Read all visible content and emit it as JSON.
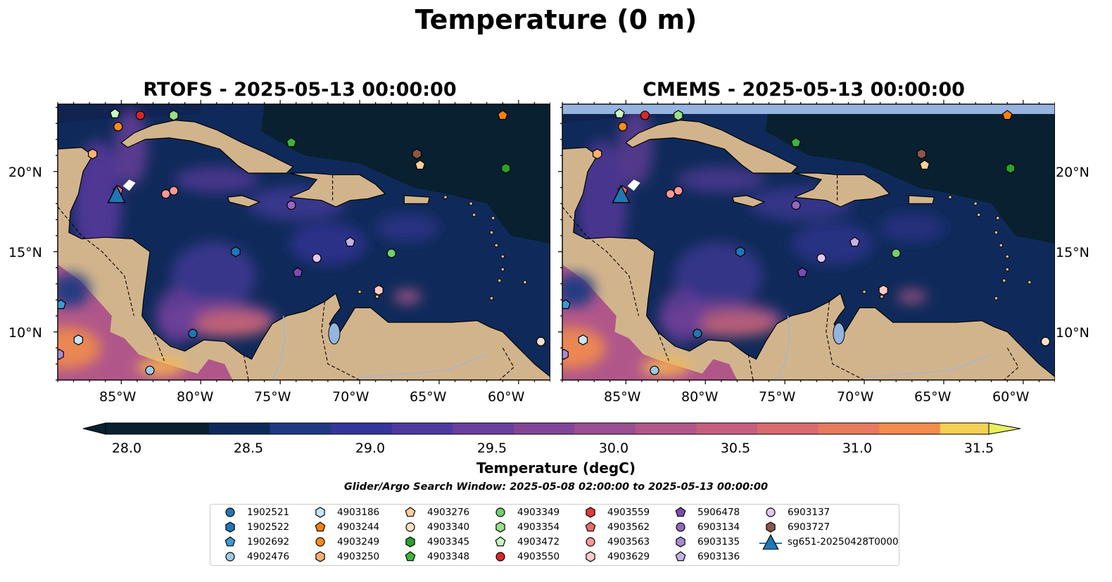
{
  "title": "Temperature (0 m)",
  "panels": [
    {
      "title": "RTOFS - 2025-05-13 00:00:00"
    },
    {
      "title": "CMEMS - 2025-05-13 00:00:00"
    }
  ],
  "lon_ticks": [
    "85°W",
    "80°W",
    "75°W",
    "70°W",
    "65°W",
    "60°W"
  ],
  "lat_ticks": [
    "20°N",
    "15°N",
    "10°N"
  ],
  "colorbar": {
    "label": "Temperature (degC)",
    "ticks": [
      "28.0",
      "28.5",
      "29.0",
      "29.5",
      "30.0",
      "30.5",
      "31.0",
      "31.5"
    ],
    "range": [
      28.0,
      31.5
    ],
    "colormap": "thermal",
    "colors": [
      "#08202f",
      "#0f2a5a",
      "#1f3a82",
      "#36359b",
      "#4f3aa0",
      "#6a3f9e",
      "#824698",
      "#9a4f92",
      "#b0578a",
      "#c65f7f",
      "#d96b6f",
      "#e77a5e",
      "#f28c4d",
      "#f9a03f",
      "#f9b84c",
      "#f2d154",
      "#e8f060"
    ]
  },
  "search_window": "Glider/Argo Search Window: 2025-05-08 02:00:00 to 2025-05-13 00:00:00",
  "legend": [
    {
      "label": "1902521",
      "marker": "circle",
      "color": "#1f77b4"
    },
    {
      "label": "1902522",
      "marker": "hexagon",
      "color": "#1f77b4"
    },
    {
      "label": "1902692",
      "marker": "pentagon",
      "color": "#3a9bd5"
    },
    {
      "label": "4902476",
      "marker": "circle",
      "color": "#9ecae9"
    },
    {
      "label": "4903186",
      "marker": "hexagon",
      "color": "#c6e6f7"
    },
    {
      "label": "4903244",
      "marker": "pentagon",
      "color": "#ff7f0e"
    },
    {
      "label": "4903249",
      "marker": "circle",
      "color": "#ff8c1a"
    },
    {
      "label": "4903250",
      "marker": "hexagon",
      "color": "#ffb070"
    },
    {
      "label": "4903276",
      "marker": "pentagon",
      "color": "#ffcf99"
    },
    {
      "label": "4903340",
      "marker": "circle",
      "color": "#fde0c5"
    },
    {
      "label": "4903345",
      "marker": "hexagon",
      "color": "#2ca02c"
    },
    {
      "label": "4903348",
      "marker": "pentagon",
      "color": "#3cb53c"
    },
    {
      "label": "4903349",
      "marker": "circle",
      "color": "#72d06a"
    },
    {
      "label": "4903354",
      "marker": "hexagon",
      "color": "#98df8a"
    },
    {
      "label": "4903472",
      "marker": "pentagon",
      "color": "#c9f5c0"
    },
    {
      "label": "4903550",
      "marker": "circle",
      "color": "#d62728"
    },
    {
      "label": "4903559",
      "marker": "hexagon",
      "color": "#e03a3a"
    },
    {
      "label": "4903562",
      "marker": "pentagon",
      "color": "#f06a6a"
    },
    {
      "label": "4903563",
      "marker": "circle",
      "color": "#ff9896"
    },
    {
      "label": "4903629",
      "marker": "hexagon",
      "color": "#ffc9c8"
    },
    {
      "label": "5906478",
      "marker": "pentagon",
      "color": "#7b4bb0"
    },
    {
      "label": "6903134",
      "marker": "circle",
      "color": "#9467bd"
    },
    {
      "label": "6903135",
      "marker": "hexagon",
      "color": "#a98ad2"
    },
    {
      "label": "6903136",
      "marker": "pentagon",
      "color": "#c5b0e5"
    },
    {
      "label": "6903137",
      "marker": "circle",
      "color": "#e2c8f2"
    },
    {
      "label": "6903727",
      "marker": "hexagon",
      "color": "#8c564b"
    },
    {
      "label": "sg651-20250428T0000",
      "marker": "triangle-line",
      "color": "#1f77b4"
    }
  ],
  "argo_points": [
    {
      "id": "4903472",
      "lon": -85.4,
      "lat": 23.6
    },
    {
      "id": "4903550",
      "lon": -83.8,
      "lat": 23.5
    },
    {
      "id": "4903354",
      "lon": -81.7,
      "lat": 23.5
    },
    {
      "id": "4903249",
      "lon": -85.2,
      "lat": 22.8
    },
    {
      "id": "4903250",
      "lon": -86.8,
      "lat": 21.1
    },
    {
      "id": "4903244",
      "lon": -61.0,
      "lat": 23.5
    },
    {
      "id": "4903348",
      "lon": -74.3,
      "lat": 21.8
    },
    {
      "id": "6903727",
      "lon": -66.4,
      "lat": 21.1
    },
    {
      "id": "4903276",
      "lon": -66.2,
      "lat": 20.4
    },
    {
      "id": "4903345",
      "lon": -60.8,
      "lat": 20.2
    },
    {
      "id": "4903562",
      "lon": -85.2,
      "lat": 18.8
    },
    {
      "id": "4903563",
      "lon": -81.7,
      "lat": 18.8
    },
    {
      "id": "4903563",
      "lon": -82.2,
      "lat": 18.6
    },
    {
      "id": "6903134",
      "lon": -74.3,
      "lat": 17.9
    },
    {
      "id": "1902522",
      "lon": -77.8,
      "lat": 15.0
    },
    {
      "id": "6903136",
      "lon": -70.6,
      "lat": 15.6
    },
    {
      "id": "4903349",
      "lon": -68.0,
      "lat": 14.9
    },
    {
      "id": "6903137",
      "lon": -72.7,
      "lat": 14.6
    },
    {
      "id": "5906478",
      "lon": -73.9,
      "lat": 13.7
    },
    {
      "id": "4903629",
      "lon": -68.8,
      "lat": 12.6
    },
    {
      "id": "1902692",
      "lon": -88.8,
      "lat": 11.7
    },
    {
      "id": "1902521",
      "lon": -80.5,
      "lat": 9.9
    },
    {
      "id": "4903186",
      "lon": -87.7,
      "lat": 9.5
    },
    {
      "id": "6903135",
      "lon": -88.9,
      "lat": 8.6
    },
    {
      "id": "4902476",
      "lon": -83.2,
      "lat": 7.6
    },
    {
      "id": "4903340",
      "lon": -58.6,
      "lat": 9.4
    }
  ],
  "glider_position": {
    "id": "sg651-20250428T0000",
    "lon": -85.3,
    "lat": 18.5
  },
  "map_extent": {
    "lon": [
      -89.0,
      -58.0
    ],
    "lat": [
      7.0,
      24.2
    ]
  }
}
